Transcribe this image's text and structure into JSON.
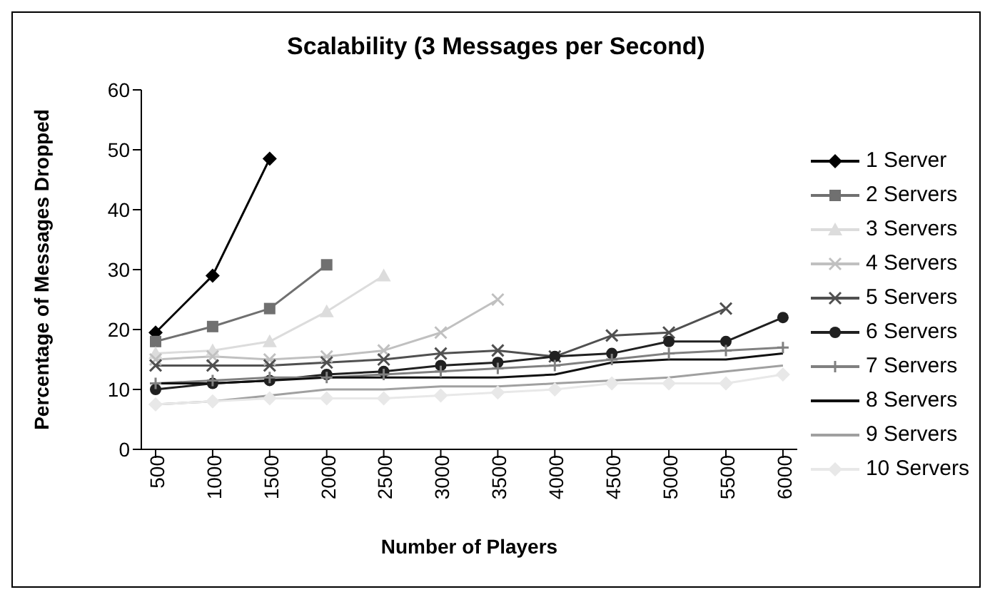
{
  "chart_data": {
    "type": "line",
    "title": "Scalability (3 Messages per Second)",
    "xlabel": "Number of Players",
    "ylabel": "Percentage of Messages Dropped",
    "categories": [
      "500",
      "1000",
      "1500",
      "2000",
      "2500",
      "3000",
      "3500",
      "4000",
      "4500",
      "5000",
      "5500",
      "6000"
    ],
    "ylim": [
      0,
      60
    ],
    "yticks": [
      0,
      10,
      20,
      30,
      40,
      50,
      60
    ],
    "grid": false,
    "legend": "right",
    "series": [
      {
        "name": "1 Server",
        "color": "#000000",
        "marker": "diamond",
        "values": [
          19.5,
          29,
          48.5,
          null,
          null,
          null,
          null,
          null,
          null,
          null,
          null,
          null
        ]
      },
      {
        "name": "2 Servers",
        "color": "#707070",
        "marker": "square",
        "values": [
          18,
          20.5,
          23.5,
          30.8,
          null,
          null,
          null,
          null,
          null,
          null,
          null,
          null
        ]
      },
      {
        "name": "3 Servers",
        "color": "#dcdcdc",
        "marker": "triangle",
        "values": [
          16,
          16.5,
          18,
          23,
          29,
          null,
          null,
          null,
          null,
          null,
          null,
          null
        ]
      },
      {
        "name": "4 Servers",
        "color": "#c0c0c0",
        "marker": "cross",
        "values": [
          15,
          15.5,
          15,
          15.5,
          16.5,
          19.5,
          25,
          null,
          null,
          null,
          null,
          null
        ]
      },
      {
        "name": "5 Servers",
        "color": "#505050",
        "marker": "cross",
        "values": [
          14,
          14,
          14,
          14.5,
          15,
          16,
          16.5,
          15.5,
          19,
          19.5,
          23.5,
          null
        ]
      },
      {
        "name": "6 Servers",
        "color": "#202020",
        "marker": "circle",
        "values": [
          10,
          11,
          11.5,
          12.5,
          13,
          14,
          14.5,
          15.5,
          16,
          18,
          18,
          22
        ]
      },
      {
        "name": "7 Servers",
        "color": "#808080",
        "marker": "plus",
        "values": [
          11,
          11.5,
          12,
          12,
          12.5,
          13,
          13.5,
          14,
          15,
          16,
          16.5,
          17
        ]
      },
      {
        "name": "8 Servers",
        "color": "#101010",
        "marker": "none",
        "values": [
          11,
          11,
          11.5,
          12,
          12,
          12,
          12,
          12.5,
          14.5,
          15,
          15,
          16
        ]
      },
      {
        "name": "9 Servers",
        "color": "#a0a0a0",
        "marker": "none",
        "values": [
          7.5,
          8,
          9,
          10,
          10,
          10.5,
          10.5,
          11,
          11.5,
          12,
          13,
          14
        ]
      },
      {
        "name": "10 Servers",
        "color": "#e8e8e8",
        "marker": "diamond",
        "values": [
          7.5,
          8,
          8.5,
          8.5,
          8.5,
          9,
          9.5,
          10,
          11,
          11,
          11,
          12.5
        ]
      }
    ]
  }
}
